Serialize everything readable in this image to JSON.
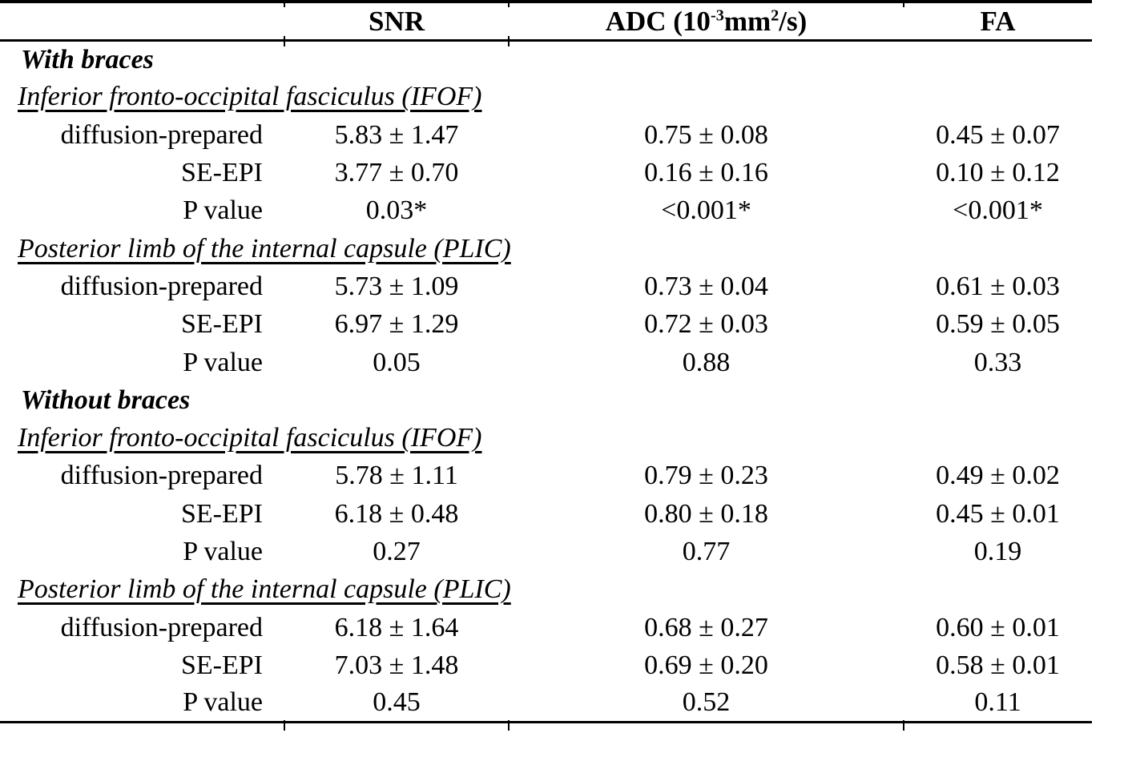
{
  "colors": {
    "text": "#000000",
    "background": "#ffffff",
    "rules": "#000000"
  },
  "table": {
    "header": {
      "label_col": "",
      "snr": "SNR",
      "adc": {
        "pre": "ADC (10",
        "sup_exp": "-3",
        "mid": "mm",
        "sup_sq": "2",
        "post": "/s)"
      },
      "fa": "FA"
    },
    "rows": [
      {
        "type": "section",
        "label": "With braces"
      },
      {
        "type": "subsection",
        "label": "Inferior fronto-occipital fasciculus (IFOF)"
      },
      {
        "type": "data",
        "label": "diffusion-prepared",
        "snr": "5.83 ± 1.47",
        "adc": "0.75 ± 0.08",
        "fa": "0.45 ± 0.07"
      },
      {
        "type": "data",
        "label": "SE-EPI",
        "snr": "3.77 ± 0.70",
        "adc": "0.16 ± 0.16",
        "fa": "0.10 ± 0.12"
      },
      {
        "type": "data",
        "label": "P value",
        "snr": "0.03*",
        "adc": "<0.001*",
        "fa": "<0.001*"
      },
      {
        "type": "subsection",
        "label": "Posterior limb of the internal capsule (PLIC)"
      },
      {
        "type": "data",
        "label": "diffusion-prepared",
        "snr": "5.73 ± 1.09",
        "adc": "0.73 ± 0.04",
        "fa": "0.61 ± 0.03"
      },
      {
        "type": "data",
        "label": "SE-EPI",
        "snr": "6.97 ± 1.29",
        "adc": "0.72 ± 0.03",
        "fa": "0.59 ± 0.05"
      },
      {
        "type": "data",
        "label": "P value",
        "snr": "0.05",
        "adc": "0.88",
        "fa": "0.33"
      },
      {
        "type": "section",
        "label": "Without braces"
      },
      {
        "type": "subsection",
        "label": "Inferior fronto-occipital fasciculus (IFOF)"
      },
      {
        "type": "data",
        "label": "diffusion-prepared",
        "snr": "5.78 ± 1.11",
        "adc": "0.79 ± 0.23",
        "fa": "0.49 ± 0.02"
      },
      {
        "type": "data",
        "label": "SE-EPI",
        "snr": "6.18 ± 0.48",
        "adc": "0.80 ± 0.18",
        "fa": "0.45 ± 0.01"
      },
      {
        "type": "data",
        "label": "P value",
        "snr": "0.27",
        "adc": "0.77",
        "fa": "0.19"
      },
      {
        "type": "subsection",
        "label": "Posterior limb of the internal capsule (PLIC)"
      },
      {
        "type": "data",
        "label": "diffusion-prepared",
        "snr": "6.18 ± 1.64",
        "adc": "0.68 ± 0.27",
        "fa": "0.60 ± 0.01"
      },
      {
        "type": "data",
        "label": "SE-EPI",
        "snr": "7.03 ± 1.48",
        "adc": "0.69 ± 0.20",
        "fa": "0.58 ± 0.01"
      },
      {
        "type": "data",
        "label": "P value",
        "snr": "0.45",
        "adc": "0.52",
        "fa": "0.11"
      }
    ]
  }
}
